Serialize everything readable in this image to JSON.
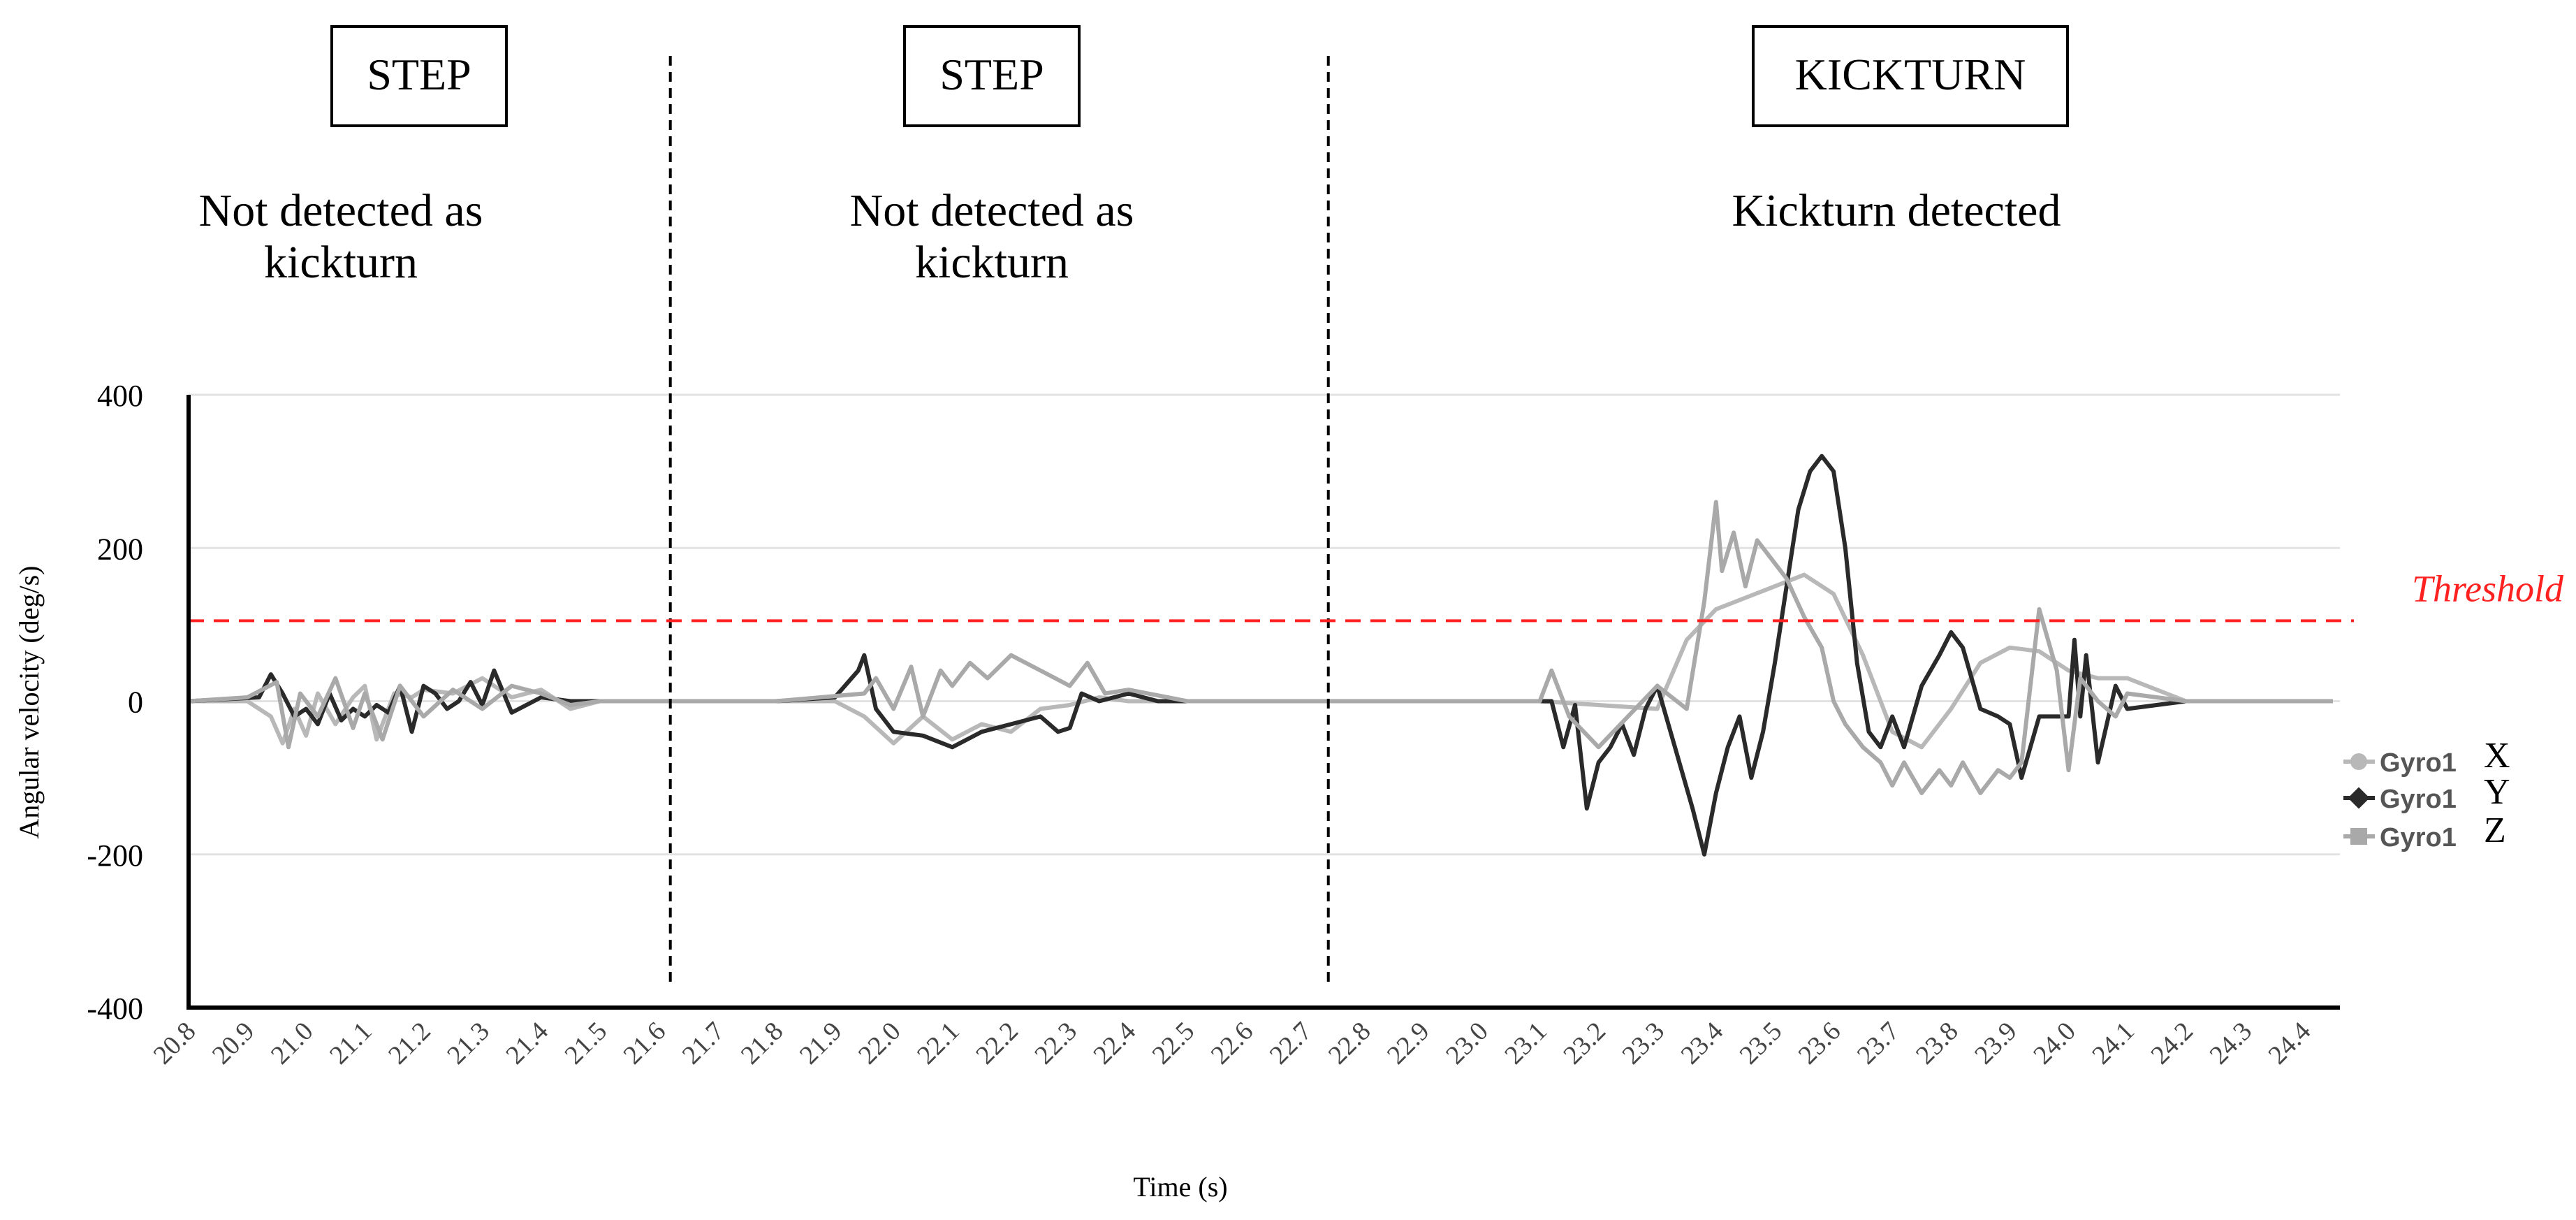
{
  "chart_data": {
    "type": "line",
    "xlabel": "Time (s)",
    "ylabel": "Angular velocity (deg/s)",
    "ylim": [
      -400,
      400
    ],
    "xlim": [
      20.8,
      24.45
    ],
    "yticks": [
      "400",
      "200",
      "0",
      "-200",
      "-400"
    ],
    "ytick_values": [
      400,
      200,
      0,
      -200,
      -400
    ],
    "xticks": [
      "20.8",
      "20.9",
      "21.0",
      "21.1",
      "21.2",
      "21.3",
      "21.4",
      "21.5",
      "21.6",
      "21.7",
      "21.8",
      "21.9",
      "22.0",
      "22.1",
      "22.2",
      "22.3",
      "22.4",
      "22.5",
      "22.6",
      "22.7",
      "22.8",
      "22.9",
      "23.0",
      "23.1",
      "23.2",
      "23.3",
      "23.4",
      "23.5",
      "23.6",
      "23.7",
      "23.8",
      "23.9",
      "24.0",
      "24.1",
      "24.2",
      "24.3",
      "24.4"
    ],
    "grid": "horizontal",
    "threshold": {
      "label": "Threshold",
      "value": 105,
      "color": "#ff2020"
    },
    "dividers": [
      21.62,
      22.74
    ],
    "sections": [
      {
        "box": "STEP",
        "caption_lines": [
          "Not detected as",
          "kickturn"
        ],
        "center": 21.19
      },
      {
        "box": "STEP",
        "caption_lines": [
          "Not detected as",
          "kickturn"
        ],
        "center": 22.18
      },
      {
        "box": "KICKTURN",
        "caption_lines": [
          "Kickturn detected"
        ],
        "center": 23.55
      }
    ],
    "legend_position": "right",
    "series": [
      {
        "name": "Gyro1",
        "axis_label": "X",
        "color": "#b8b8b8",
        "x": [
          20.8,
          20.9,
          20.94,
          20.96,
          20.98,
          21.0,
          21.02,
          21.05,
          21.08,
          21.1,
          21.12,
          21.15,
          21.18,
          21.2,
          21.25,
          21.3,
          21.35,
          21.4,
          21.45,
          21.5,
          21.6,
          21.7,
          21.8,
          21.9,
          21.95,
          22.0,
          22.05,
          22.1,
          22.15,
          22.2,
          22.25,
          22.3,
          22.35,
          22.4,
          22.5,
          22.6,
          22.8,
          23.0,
          23.1,
          23.2,
          23.3,
          23.35,
          23.4,
          23.45,
          23.5,
          23.55,
          23.6,
          23.65,
          23.7,
          23.75,
          23.8,
          23.85,
          23.9,
          23.95,
          24.0,
          24.05,
          24.1,
          24.2,
          24.3,
          24.45
        ],
        "y": [
          0,
          0,
          -20,
          -55,
          -10,
          -45,
          10,
          -30,
          5,
          20,
          -50,
          10,
          5,
          15,
          10,
          30,
          5,
          15,
          -10,
          0,
          0,
          0,
          0,
          0,
          -20,
          -55,
          -20,
          -50,
          -30,
          -40,
          -10,
          -5,
          5,
          0,
          0,
          0,
          0,
          0,
          0,
          -5,
          -10,
          80,
          120,
          135,
          150,
          165,
          140,
          60,
          -40,
          -60,
          -10,
          50,
          70,
          65,
          40,
          30,
          30,
          0,
          0,
          0
        ]
      },
      {
        "name": "Gyro1",
        "axis_label": "Y",
        "color": "#2a2a2a",
        "x": [
          20.8,
          20.92,
          20.94,
          20.96,
          20.98,
          21.0,
          21.02,
          21.04,
          21.06,
          21.08,
          21.1,
          21.12,
          21.14,
          21.16,
          21.18,
          21.2,
          21.22,
          21.24,
          21.26,
          21.28,
          21.3,
          21.32,
          21.35,
          21.4,
          21.45,
          21.5,
          21.6,
          21.7,
          21.8,
          21.9,
          21.94,
          21.95,
          21.97,
          22.0,
          22.05,
          22.1,
          22.15,
          22.2,
          22.25,
          22.28,
          22.3,
          22.32,
          22.35,
          22.4,
          22.45,
          22.6,
          23.0,
          23.12,
          23.14,
          23.16,
          23.18,
          23.2,
          23.22,
          23.24,
          23.26,
          23.28,
          23.3,
          23.33,
          23.36,
          23.38,
          23.4,
          23.42,
          23.44,
          23.46,
          23.48,
          23.5,
          23.52,
          23.54,
          23.56,
          23.58,
          23.6,
          23.62,
          23.64,
          23.66,
          23.68,
          23.7,
          23.72,
          23.75,
          23.78,
          23.8,
          23.82,
          23.85,
          23.88,
          23.9,
          23.92,
          23.95,
          24.0,
          24.01,
          24.02,
          24.03,
          24.05,
          24.08,
          24.1,
          24.2,
          24.45
        ],
        "y": [
          0,
          5,
          35,
          10,
          -20,
          -10,
          -30,
          10,
          -25,
          -10,
          -20,
          -5,
          -15,
          20,
          -40,
          20,
          10,
          -10,
          0,
          25,
          -5,
          40,
          -15,
          5,
          0,
          0,
          0,
          0,
          0,
          5,
          40,
          60,
          -10,
          -40,
          -45,
          -60,
          -40,
          -30,
          -20,
          -40,
          -35,
          10,
          0,
          10,
          0,
          0,
          0,
          0,
          -60,
          -5,
          -140,
          -80,
          -60,
          -30,
          -70,
          -10,
          20,
          -60,
          -140,
          -200,
          -120,
          -60,
          -20,
          -100,
          -40,
          50,
          150,
          250,
          300,
          320,
          300,
          200,
          50,
          -40,
          -60,
          -20,
          -60,
          20,
          60,
          90,
          70,
          -10,
          -20,
          -30,
          -100,
          -20,
          -20,
          80,
          -20,
          60,
          -80,
          20,
          -10,
          0,
          0
        ]
      },
      {
        "name": "Gyro1",
        "axis_label": "Z",
        "color": "#a9a9a9",
        "x": [
          20.8,
          20.9,
          20.95,
          20.97,
          20.99,
          21.02,
          21.05,
          21.08,
          21.1,
          21.13,
          21.16,
          21.2,
          21.25,
          21.3,
          21.35,
          21.4,
          21.45,
          21.5,
          21.6,
          21.8,
          21.95,
          21.97,
          22.0,
          22.03,
          22.05,
          22.08,
          22.1,
          22.13,
          22.16,
          22.2,
          22.25,
          22.3,
          22.33,
          22.36,
          22.4,
          22.5,
          22.8,
          23.1,
          23.12,
          23.15,
          23.2,
          23.25,
          23.3,
          23.35,
          23.38,
          23.4,
          23.41,
          23.43,
          23.45,
          23.47,
          23.5,
          23.52,
          23.55,
          23.58,
          23.6,
          23.62,
          23.65,
          23.68,
          23.7,
          23.72,
          23.75,
          23.78,
          23.8,
          23.82,
          23.85,
          23.88,
          23.9,
          23.92,
          23.95,
          23.98,
          24.0,
          24.02,
          24.05,
          24.08,
          24.1,
          24.2,
          24.45
        ],
        "y": [
          0,
          5,
          25,
          -60,
          10,
          -20,
          30,
          -35,
          10,
          -50,
          20,
          -20,
          15,
          -10,
          20,
          10,
          -5,
          0,
          0,
          0,
          10,
          30,
          -10,
          45,
          -20,
          40,
          20,
          50,
          30,
          60,
          40,
          20,
          50,
          10,
          15,
          0,
          0,
          0,
          40,
          -20,
          -60,
          -20,
          20,
          -10,
          130,
          260,
          170,
          220,
          150,
          210,
          180,
          160,
          110,
          70,
          0,
          -30,
          -60,
          -80,
          -110,
          -80,
          -120,
          -90,
          -110,
          -80,
          -120,
          -90,
          -100,
          -80,
          120,
          40,
          -90,
          30,
          0,
          -20,
          10,
          0,
          0
        ]
      }
    ]
  }
}
